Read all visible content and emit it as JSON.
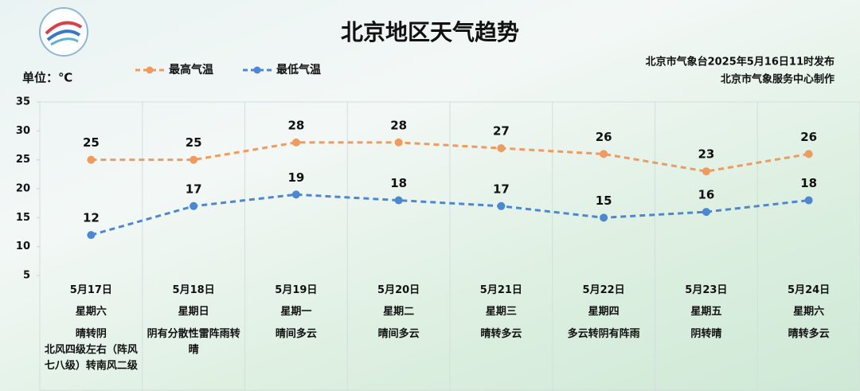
{
  "chart_data": {
    "type": "line",
    "title": "北京地区天气趋势",
    "unit_label": "单位：℃",
    "publisher": [
      "北京市气象台2025年5月16日11时发布",
      "北京市气象服务中心制作"
    ],
    "categories": [
      "5月17日",
      "5月18日",
      "5月19日",
      "5月20日",
      "5月21日",
      "5月22日",
      "5月23日",
      "5月24日"
    ],
    "weekdays": [
      "星期六",
      "星期日",
      "星期一",
      "星期二",
      "星期三",
      "星期四",
      "星期五",
      "星期六"
    ],
    "weather": [
      [
        "晴转阴",
        "北风四级左右（阵风七八级）转南风二级"
      ],
      [
        "阴有分散性雷阵雨转晴"
      ],
      [
        "晴间多云"
      ],
      [
        "晴间多云"
      ],
      [
        "晴转多云"
      ],
      [
        "多云转阴有阵雨"
      ],
      [
        "阴转晴"
      ],
      [
        "晴转多云"
      ]
    ],
    "series": [
      {
        "name": "最高气温",
        "color": "#ef9a5e",
        "values": [
          25,
          25,
          28,
          28,
          27,
          26,
          23,
          26
        ]
      },
      {
        "name": "最低气温",
        "color": "#4d87d2",
        "values": [
          12,
          17,
          19,
          18,
          17,
          15,
          16,
          18
        ]
      }
    ],
    "ylim": [
      5,
      35
    ],
    "yticks": [
      5,
      10,
      15,
      20,
      25,
      30,
      35
    ],
    "grid": false
  }
}
